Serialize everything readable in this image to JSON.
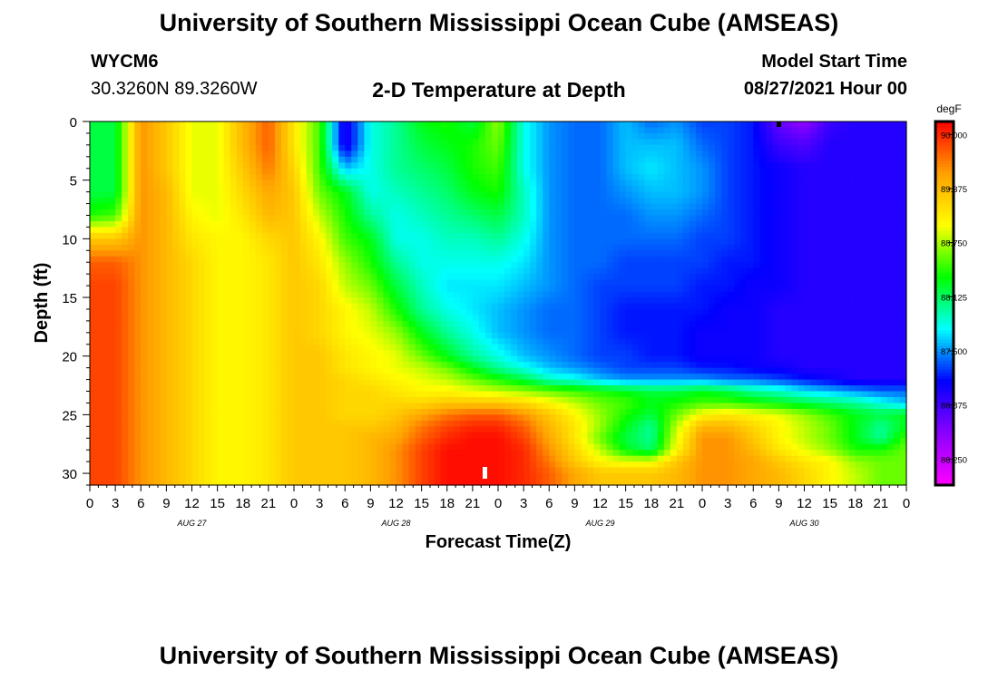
{
  "header": {
    "title": "University of Southern Mississippi Ocean Cube (AMSEAS)",
    "station": "WYCM6",
    "coordinates": "30.3260N  89.3260W",
    "plot_title": "2-D Temperature at Depth",
    "model_start_label": "Model Start Time",
    "model_start_value": "08/27/2021 Hour 00"
  },
  "footer": {
    "title": "University of Southern Mississippi Ocean Cube (AMSEAS)"
  },
  "chart_data": {
    "type": "heatmap",
    "ylabel": "Depth (ft)",
    "xlabel": "Forecast Time(Z)",
    "y_range": [
      0,
      31
    ],
    "y_ticks": [
      "0",
      "5",
      "10",
      "15",
      "20",
      "25",
      "30"
    ],
    "x_range_hours": [
      0,
      96
    ],
    "x_tick_labels": [
      "0",
      "3",
      "6",
      "9",
      "12",
      "15",
      "18",
      "21",
      "0",
      "3",
      "6",
      "9",
      "12",
      "15",
      "18",
      "21",
      "0",
      "3",
      "6",
      "9",
      "12",
      "15",
      "18",
      "21",
      "0",
      "3",
      "6",
      "9",
      "12",
      "15",
      "18",
      "21",
      "0"
    ],
    "day_labels": [
      "AUG 27",
      "AUG 28",
      "AUG 29",
      "AUG 30"
    ],
    "colorbar": {
      "unit": "degF",
      "min": 85.95,
      "max": 90.15,
      "tick_labels": [
        "90.000",
        "89.375",
        "88.750",
        "88.125",
        "87.500",
        "86.875",
        "86.250"
      ],
      "colors": [
        "#ff00ff",
        "#8a00ff",
        "#0000ff",
        "#00ffff",
        "#00ff00",
        "#ffff00",
        "#ffa000",
        "#ff0000"
      ]
    },
    "depths_ft": [
      0,
      2,
      4,
      6,
      8,
      10,
      12,
      14,
      16,
      18,
      20,
      21,
      22,
      23,
      24,
      25,
      26,
      27,
      28,
      29,
      30,
      31
    ],
    "hours": [
      0,
      3,
      6,
      9,
      12,
      15,
      18,
      21,
      24,
      27,
      30,
      33,
      36,
      39,
      42,
      45,
      48,
      51,
      54,
      57,
      60,
      63,
      66,
      69,
      72,
      75,
      78,
      81,
      84,
      87,
      90,
      93,
      96
    ],
    "temperature_grid": [
      [
        88.2,
        88.2,
        89.6,
        89.3,
        88.9,
        88.9,
        89.4,
        89.8,
        89.1,
        88.5,
        87.0,
        87.8,
        88.0,
        88.3,
        88.4,
        88.2,
        88.7,
        87.8,
        87.5,
        87.4,
        87.4,
        87.6,
        87.4,
        87.5,
        87.3,
        87.3,
        87.2,
        86.7,
        86.5,
        86.9,
        87.0,
        87.0,
        87.0
      ],
      [
        88.2,
        88.2,
        89.6,
        89.3,
        88.9,
        88.9,
        89.4,
        89.8,
        89.1,
        88.5,
        87.0,
        87.8,
        88.0,
        88.2,
        88.3,
        88.4,
        88.6,
        87.8,
        87.5,
        87.4,
        87.4,
        87.6,
        87.6,
        87.6,
        87.4,
        87.3,
        87.2,
        86.9,
        86.8,
        87.0,
        87.0,
        87.0,
        87.0
      ],
      [
        88.2,
        88.2,
        89.6,
        89.3,
        88.9,
        88.9,
        89.3,
        89.7,
        89.2,
        88.5,
        87.6,
        87.8,
        88.0,
        88.1,
        88.2,
        88.4,
        88.5,
        87.8,
        87.5,
        87.4,
        87.4,
        87.6,
        87.7,
        87.6,
        87.5,
        87.3,
        87.2,
        87.1,
        87.0,
        87.0,
        87.0,
        87.0,
        87.0
      ],
      [
        88.2,
        88.2,
        89.6,
        89.4,
        88.9,
        88.9,
        89.2,
        89.5,
        89.3,
        88.6,
        88.3,
        87.8,
        87.9,
        88.0,
        88.1,
        88.3,
        88.4,
        87.9,
        87.5,
        87.4,
        87.4,
        87.5,
        87.6,
        87.6,
        87.5,
        87.3,
        87.2,
        87.1,
        87.0,
        87.0,
        87.0,
        87.0,
        87.0
      ],
      [
        88.4,
        88.5,
        89.6,
        89.4,
        89.0,
        88.9,
        89.1,
        89.4,
        89.3,
        88.8,
        88.4,
        88.0,
        87.8,
        87.9,
        88.0,
        88.1,
        88.2,
        87.9,
        87.5,
        87.4,
        87.4,
        87.4,
        87.5,
        87.5,
        87.4,
        87.3,
        87.2,
        87.1,
        87.0,
        87.0,
        87.0,
        87.0,
        87.0
      ],
      [
        89.3,
        89.3,
        89.6,
        89.4,
        89.1,
        89.0,
        89.0,
        89.2,
        89.3,
        89.0,
        88.5,
        88.3,
        87.8,
        87.8,
        87.9,
        87.9,
        88.0,
        87.8,
        87.5,
        87.4,
        87.4,
        87.4,
        87.4,
        87.4,
        87.3,
        87.3,
        87.2,
        87.1,
        87.0,
        87.0,
        87.0,
        87.0,
        87.0
      ],
      [
        89.8,
        89.8,
        89.6,
        89.4,
        89.2,
        89.0,
        89.0,
        89.1,
        89.3,
        89.1,
        88.7,
        88.4,
        88.0,
        87.8,
        87.8,
        87.8,
        87.8,
        87.7,
        87.5,
        87.4,
        87.4,
        87.3,
        87.3,
        87.3,
        87.3,
        87.2,
        87.2,
        87.1,
        87.0,
        87.0,
        87.0,
        87.0,
        87.0
      ],
      [
        89.9,
        89.9,
        89.6,
        89.4,
        89.2,
        89.0,
        89.0,
        89.1,
        89.3,
        89.2,
        88.8,
        88.6,
        88.2,
        87.9,
        87.7,
        87.7,
        87.7,
        87.6,
        87.5,
        87.4,
        87.3,
        87.3,
        87.3,
        87.3,
        87.2,
        87.2,
        87.1,
        87.1,
        87.0,
        87.0,
        87.0,
        87.0,
        87.0
      ],
      [
        89.9,
        89.9,
        89.6,
        89.4,
        89.2,
        89.0,
        89.0,
        89.1,
        89.3,
        89.2,
        89.0,
        88.8,
        88.4,
        88.0,
        87.8,
        87.7,
        87.6,
        87.5,
        87.4,
        87.4,
        87.3,
        87.2,
        87.2,
        87.2,
        87.2,
        87.1,
        87.1,
        87.0,
        87.0,
        87.0,
        87.0,
        87.0,
        87.0
      ],
      [
        89.9,
        89.9,
        89.6,
        89.4,
        89.2,
        89.0,
        89.0,
        89.1,
        89.3,
        89.2,
        89.0,
        88.9,
        88.7,
        88.3,
        88.0,
        87.8,
        87.6,
        87.5,
        87.4,
        87.4,
        87.3,
        87.2,
        87.2,
        87.2,
        87.1,
        87.1,
        87.1,
        87.0,
        87.0,
        87.0,
        87.0,
        87.0,
        87.0
      ],
      [
        89.9,
        89.9,
        89.6,
        89.4,
        89.2,
        89.0,
        89.0,
        89.1,
        89.3,
        89.3,
        89.1,
        89.0,
        88.9,
        88.6,
        88.3,
        88.0,
        87.8,
        87.6,
        87.5,
        87.4,
        87.3,
        87.3,
        87.2,
        87.2,
        87.1,
        87.1,
        87.1,
        87.0,
        87.0,
        87.0,
        87.0,
        87.0,
        87.0
      ],
      [
        89.9,
        89.9,
        89.6,
        89.4,
        89.2,
        89.0,
        89.0,
        89.1,
        89.3,
        89.3,
        89.1,
        89.0,
        88.9,
        88.8,
        88.6,
        88.3,
        88.0,
        87.8,
        87.6,
        87.5,
        87.4,
        87.3,
        87.3,
        87.3,
        87.2,
        87.2,
        87.1,
        87.1,
        87.0,
        87.0,
        87.0,
        87.0,
        87.0
      ],
      [
        89.9,
        89.9,
        89.6,
        89.4,
        89.2,
        89.0,
        89.0,
        89.1,
        89.3,
        89.3,
        89.2,
        89.1,
        89.0,
        88.9,
        88.8,
        88.6,
        88.4,
        88.2,
        87.9,
        87.8,
        87.6,
        87.5,
        87.5,
        87.5,
        87.5,
        87.4,
        87.4,
        87.3,
        87.2,
        87.1,
        87.0,
        87.0,
        87.0
      ],
      [
        89.9,
        89.9,
        89.6,
        89.4,
        89.2,
        89.0,
        89.0,
        89.1,
        89.3,
        89.3,
        89.2,
        89.2,
        89.1,
        89.0,
        89.0,
        88.9,
        88.8,
        88.7,
        88.6,
        88.5,
        88.4,
        88.3,
        88.2,
        88.2,
        88.3,
        88.2,
        88.0,
        87.9,
        87.7,
        87.6,
        87.5,
        87.4,
        87.4
      ],
      [
        89.9,
        89.9,
        89.6,
        89.4,
        89.2,
        89.0,
        89.0,
        89.1,
        89.3,
        89.3,
        89.2,
        89.2,
        89.2,
        89.2,
        89.3,
        89.3,
        89.3,
        89.2,
        89.0,
        88.8,
        88.6,
        88.5,
        88.3,
        88.4,
        88.5,
        88.5,
        88.4,
        88.3,
        88.2,
        88.1,
        88.0,
        87.8,
        87.6
      ],
      [
        89.9,
        89.9,
        89.6,
        89.4,
        89.2,
        89.0,
        89.0,
        89.1,
        89.3,
        89.3,
        89.2,
        89.2,
        89.3,
        89.5,
        89.7,
        89.8,
        89.8,
        89.6,
        89.3,
        89.0,
        88.7,
        88.4,
        88.2,
        88.6,
        89.0,
        89.1,
        89.0,
        88.9,
        88.7,
        88.5,
        88.3,
        88.2,
        88.3
      ],
      [
        89.9,
        89.9,
        89.6,
        89.4,
        89.2,
        89.0,
        89.0,
        89.1,
        89.3,
        89.3,
        89.3,
        89.3,
        89.4,
        89.7,
        89.9,
        90.0,
        90.0,
        89.8,
        89.4,
        89.1,
        88.7,
        88.3,
        88.0,
        88.8,
        89.4,
        89.4,
        89.2,
        89.0,
        88.8,
        88.6,
        88.3,
        88.0,
        88.3
      ],
      [
        89.9,
        89.9,
        89.6,
        89.4,
        89.2,
        89.0,
        89.0,
        89.1,
        89.3,
        89.3,
        89.3,
        89.4,
        89.5,
        89.8,
        90.0,
        90.1,
        90.1,
        89.9,
        89.5,
        89.1,
        88.6,
        88.2,
        88.0,
        88.9,
        89.6,
        89.6,
        89.3,
        89.0,
        88.8,
        88.6,
        88.3,
        88.0,
        88.5
      ],
      [
        89.9,
        89.9,
        89.6,
        89.4,
        89.2,
        89.0,
        89.0,
        89.1,
        89.3,
        89.3,
        89.3,
        89.4,
        89.6,
        89.9,
        90.1,
        90.1,
        90.1,
        90.0,
        89.6,
        89.2,
        88.8,
        88.3,
        88.1,
        89.0,
        89.6,
        89.6,
        89.4,
        89.1,
        88.9,
        88.7,
        88.4,
        88.4,
        88.6
      ],
      [
        89.9,
        89.9,
        89.6,
        89.4,
        89.2,
        89.0,
        89.0,
        89.1,
        89.3,
        89.3,
        89.3,
        89.4,
        89.6,
        89.9,
        90.1,
        90.1,
        90.1,
        90.0,
        89.7,
        89.3,
        89.0,
        88.9,
        88.9,
        89.3,
        89.6,
        89.6,
        89.5,
        89.3,
        89.1,
        89.0,
        88.7,
        88.6,
        88.6
      ],
      [
        89.9,
        89.9,
        89.6,
        89.4,
        89.2,
        89.0,
        89.0,
        89.1,
        89.3,
        89.3,
        89.3,
        89.4,
        89.6,
        89.9,
        90.1,
        90.1,
        90.1,
        90.0,
        89.8,
        89.5,
        89.3,
        89.3,
        89.3,
        89.4,
        89.6,
        89.6,
        89.5,
        89.4,
        89.2,
        89.0,
        88.8,
        88.6,
        88.6
      ],
      [
        89.9,
        89.9,
        89.6,
        89.4,
        89.2,
        89.0,
        89.0,
        89.1,
        89.3,
        89.3,
        89.3,
        89.4,
        89.6,
        89.9,
        90.1,
        90.1,
        90.1,
        90.0,
        89.8,
        89.5,
        89.3,
        89.3,
        89.3,
        89.4,
        89.6,
        89.6,
        89.5,
        89.4,
        89.2,
        89.0,
        88.8,
        88.6,
        88.6
      ]
    ]
  }
}
